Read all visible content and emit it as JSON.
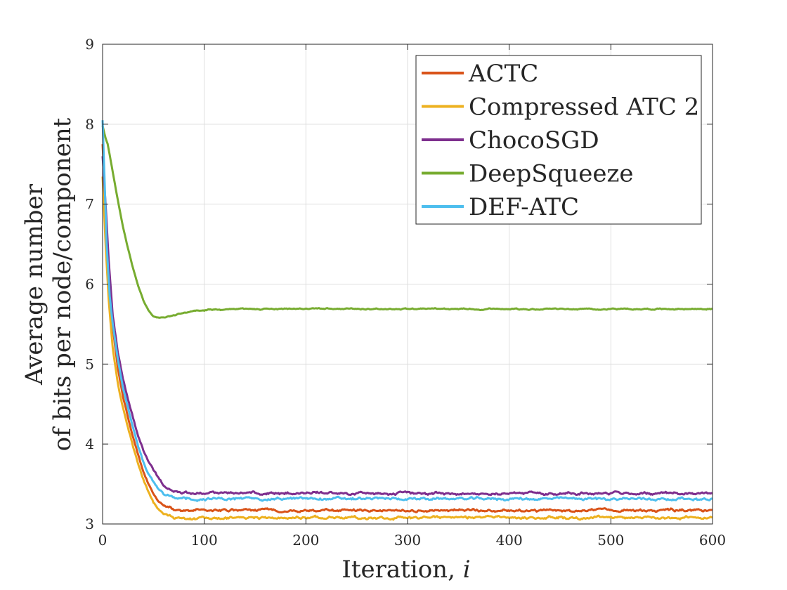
{
  "chart_data": {
    "type": "line",
    "title": "",
    "xlabel": "Iteration, ",
    "xlabel_var": "i",
    "ylabel_lines": [
      "Average number",
      "of bits per node/component"
    ],
    "xlim": [
      0,
      600
    ],
    "ylim": [
      3,
      9
    ],
    "xticks": [
      0,
      100,
      200,
      300,
      400,
      500,
      600
    ],
    "yticks": [
      3,
      4,
      5,
      6,
      7,
      8,
      9
    ],
    "grid": true,
    "legend_position": "top-right",
    "series": [
      {
        "name": "ACTC",
        "color": "#D95319",
        "points": [
          [
            0,
            7.75
          ],
          [
            3,
            6.9
          ],
          [
            6,
            6.1
          ],
          [
            10,
            5.45
          ],
          [
            15,
            4.95
          ],
          [
            20,
            4.6
          ],
          [
            25,
            4.33
          ],
          [
            30,
            4.08
          ],
          [
            35,
            3.85
          ],
          [
            40,
            3.65
          ],
          [
            45,
            3.5
          ],
          [
            50,
            3.38
          ],
          [
            55,
            3.28
          ],
          [
            60,
            3.23
          ],
          [
            65,
            3.2
          ],
          [
            70,
            3.18
          ],
          [
            80,
            3.17
          ],
          [
            100,
            3.17
          ],
          [
            600,
            3.17
          ]
        ],
        "plateau": 3.17,
        "noise": 0.012
      },
      {
        "name": "Compressed ATC 2",
        "color": "#EDB120",
        "points": [
          [
            0,
            7.35
          ],
          [
            3,
            6.5
          ],
          [
            6,
            5.8
          ],
          [
            10,
            5.2
          ],
          [
            15,
            4.75
          ],
          [
            20,
            4.45
          ],
          [
            25,
            4.2
          ],
          [
            30,
            3.97
          ],
          [
            35,
            3.75
          ],
          [
            40,
            3.56
          ],
          [
            45,
            3.4
          ],
          [
            50,
            3.27
          ],
          [
            55,
            3.18
          ],
          [
            60,
            3.13
          ],
          [
            65,
            3.11
          ],
          [
            70,
            3.09
          ],
          [
            80,
            3.08
          ],
          [
            100,
            3.08
          ],
          [
            600,
            3.08
          ]
        ],
        "plateau": 3.08,
        "noise": 0.012
      },
      {
        "name": "ChocoSGD",
        "color": "#7E2F8E",
        "points": [
          [
            0,
            7.6
          ],
          [
            3,
            7.0
          ],
          [
            6,
            6.3
          ],
          [
            10,
            5.6
          ],
          [
            15,
            5.15
          ],
          [
            20,
            4.82
          ],
          [
            25,
            4.56
          ],
          [
            30,
            4.33
          ],
          [
            35,
            4.1
          ],
          [
            40,
            3.93
          ],
          [
            45,
            3.78
          ],
          [
            50,
            3.68
          ],
          [
            55,
            3.58
          ],
          [
            60,
            3.48
          ],
          [
            65,
            3.43
          ],
          [
            70,
            3.41
          ],
          [
            80,
            3.39
          ],
          [
            100,
            3.385
          ],
          [
            600,
            3.385
          ]
        ],
        "plateau": 3.385,
        "noise": 0.012
      },
      {
        "name": "DeepSqueeze",
        "color": "#77AC30",
        "points": [
          [
            0,
            7.98
          ],
          [
            3,
            7.82
          ],
          [
            5,
            7.75
          ],
          [
            10,
            7.4
          ],
          [
            15,
            7.05
          ],
          [
            20,
            6.72
          ],
          [
            25,
            6.45
          ],
          [
            30,
            6.2
          ],
          [
            35,
            5.98
          ],
          [
            40,
            5.8
          ],
          [
            45,
            5.67
          ],
          [
            50,
            5.6
          ],
          [
            55,
            5.58
          ],
          [
            60,
            5.585
          ],
          [
            70,
            5.61
          ],
          [
            80,
            5.64
          ],
          [
            90,
            5.66
          ],
          [
            100,
            5.675
          ],
          [
            120,
            5.685
          ],
          [
            140,
            5.69
          ],
          [
            200,
            5.69
          ],
          [
            600,
            5.69
          ]
        ],
        "plateau": 5.69,
        "noise": 0.006
      },
      {
        "name": "DEF-ATC",
        "color": "#4DBEEE",
        "points": [
          [
            0,
            8.05
          ],
          [
            2,
            7.3
          ],
          [
            4,
            6.5
          ],
          [
            7,
            5.85
          ],
          [
            10,
            5.5
          ],
          [
            15,
            5.05
          ],
          [
            20,
            4.7
          ],
          [
            25,
            4.45
          ],
          [
            30,
            4.2
          ],
          [
            35,
            3.97
          ],
          [
            40,
            3.78
          ],
          [
            45,
            3.63
          ],
          [
            50,
            3.52
          ],
          [
            55,
            3.44
          ],
          [
            60,
            3.38
          ],
          [
            65,
            3.35
          ],
          [
            70,
            3.33
          ],
          [
            80,
            3.32
          ],
          [
            100,
            3.315
          ],
          [
            600,
            3.315
          ]
        ],
        "plateau": 3.315,
        "noise": 0.012
      }
    ]
  }
}
